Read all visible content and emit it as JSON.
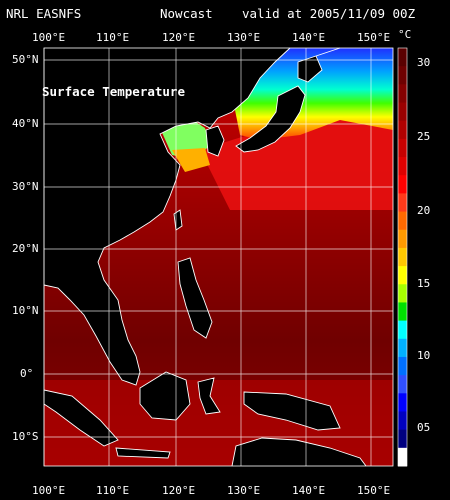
{
  "header": {
    "source": "NRL EASNFS",
    "product": "Nowcast",
    "valid": "valid at 2005/11/09 00Z"
  },
  "map": {
    "title": "Surface Temperature",
    "lon_labels": [
      "100°E",
      "110°E",
      "120°E",
      "130°E",
      "140°E",
      "150°E"
    ],
    "lat_labels": [
      "50°N",
      "40°N",
      "30°N",
      "20°N",
      "10°N",
      "0°",
      "10°S"
    ]
  },
  "colorbar": {
    "unit": "°C",
    "ticks": [
      "30",
      "25",
      "20",
      "15",
      "10",
      "05"
    ],
    "colors": [
      "#5a0000",
      "#6e0000",
      "#850000",
      "#9a0000",
      "#b00000",
      "#c80000",
      "#e00000",
      "#ff0000",
      "#ff3a1a",
      "#ff6a00",
      "#ff9a00",
      "#ffc800",
      "#ffff00",
      "#a6ff00",
      "#00e000",
      "#00ffff",
      "#00b0ff",
      "#0070ff",
      "#3050ff",
      "#0000ff",
      "#0000c0",
      "#000080",
      "#ffffff"
    ]
  }
}
